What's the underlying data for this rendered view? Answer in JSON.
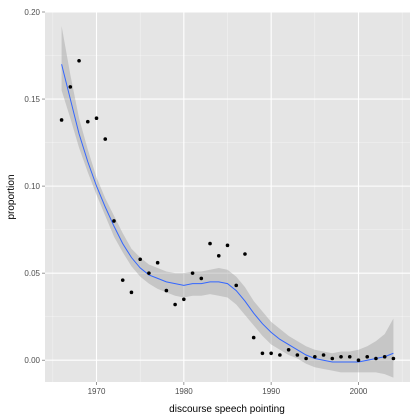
{
  "chart_data": {
    "type": "scatter",
    "title": "",
    "xlabel": "discourse speech pointing",
    "ylabel": "proportion",
    "xlim": [
      1964.1,
      2005.9
    ],
    "ylim": [
      -0.0125,
      0.2
    ],
    "grid": true,
    "x_ticks": [
      1970,
      1980,
      1990,
      2000
    ],
    "x_tick_labels": [
      "1970",
      "1980",
      "1990",
      "2000"
    ],
    "y_ticks": [
      0.0,
      0.05,
      0.1,
      0.15,
      0.2
    ],
    "y_tick_labels": [
      "0.00",
      "0.05",
      "0.10",
      "0.15",
      "0.20"
    ],
    "colors": {
      "panel": "#e5e5e5",
      "grid": "#ffffff",
      "point": "#000000",
      "smooth_line": "#3366ff",
      "ribbon": "#999999"
    },
    "points": {
      "x": [
        1966,
        1967,
        1968,
        1969,
        1970,
        1971,
        1972,
        1973,
        1974,
        1975,
        1976,
        1977,
        1978,
        1979,
        1980,
        1981,
        1982,
        1983,
        1984,
        1985,
        1986,
        1987,
        1988,
        1989,
        1990,
        1991,
        1992,
        1993,
        1994,
        1995,
        1996,
        1997,
        1998,
        1999,
        2000,
        2001,
        2002,
        2003,
        2004
      ],
      "y": [
        0.138,
        0.157,
        0.172,
        0.137,
        0.139,
        0.127,
        0.08,
        0.046,
        0.039,
        0.058,
        0.05,
        0.056,
        0.04,
        0.032,
        0.035,
        0.05,
        0.047,
        0.067,
        0.06,
        0.066,
        0.043,
        0.061,
        0.013,
        0.004,
        0.004,
        0.003,
        0.006,
        0.003,
        0.001,
        0.002,
        0.003,
        0.001,
        0.002,
        0.002,
        0.0,
        0.002,
        0.001,
        0.002,
        0.001
      ]
    },
    "smooth": {
      "x": [
        1966,
        1967,
        1968,
        1969,
        1970,
        1971,
        1972,
        1973,
        1974,
        1975,
        1976,
        1977,
        1978,
        1979,
        1980,
        1981,
        1982,
        1983,
        1984,
        1985,
        1986,
        1987,
        1988,
        1989,
        1990,
        1991,
        1992,
        1993,
        1994,
        1995,
        1996,
        1997,
        1998,
        1999,
        2000,
        2001,
        2002,
        2003,
        2004
      ],
      "y": [
        0.17,
        0.15,
        0.13,
        0.114,
        0.1,
        0.088,
        0.077,
        0.067,
        0.059,
        0.053,
        0.049,
        0.047,
        0.045,
        0.044,
        0.043,
        0.044,
        0.044,
        0.045,
        0.045,
        0.044,
        0.04,
        0.034,
        0.027,
        0.021,
        0.016,
        0.012,
        0.009,
        0.006,
        0.003,
        0.001,
        0.0,
        -0.001,
        -0.001,
        -0.001,
        -0.001,
        0.0,
        0.001,
        0.002,
        0.004
      ],
      "lower": [
        0.155,
        0.139,
        0.122,
        0.108,
        0.095,
        0.083,
        0.071,
        0.062,
        0.054,
        0.048,
        0.044,
        0.041,
        0.039,
        0.037,
        0.036,
        0.037,
        0.037,
        0.038,
        0.037,
        0.036,
        0.032,
        0.026,
        0.02,
        0.014,
        0.009,
        0.006,
        0.003,
        0.001,
        -0.002,
        -0.004,
        -0.005,
        -0.006,
        -0.007,
        -0.007,
        -0.007,
        -0.007,
        -0.007,
        -0.008,
        -0.01
      ],
      "upper": [
        0.192,
        0.164,
        0.139,
        0.121,
        0.105,
        0.093,
        0.083,
        0.073,
        0.064,
        0.059,
        0.055,
        0.053,
        0.051,
        0.05,
        0.05,
        0.051,
        0.051,
        0.052,
        0.053,
        0.052,
        0.048,
        0.042,
        0.034,
        0.028,
        0.022,
        0.018,
        0.014,
        0.011,
        0.008,
        0.006,
        0.005,
        0.004,
        0.005,
        0.005,
        0.006,
        0.008,
        0.011,
        0.015,
        0.024
      ]
    }
  }
}
